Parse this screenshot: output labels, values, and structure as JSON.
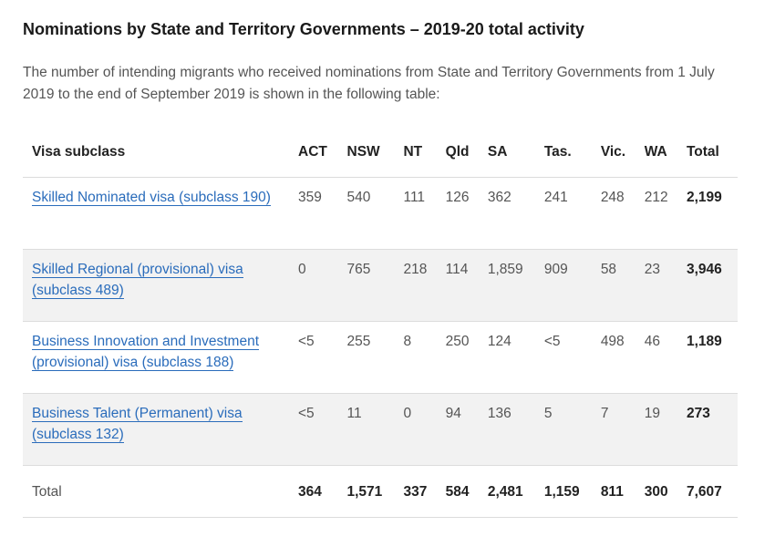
{
  "heading": "Nominations by State and Territory Governments – 2019-20 total activity",
  "intro": "The number of intending migrants who received nominations from State and Territory Governments from 1 July 2019 to the end of September 2019 is shown in the following table:",
  "table": {
    "headers": [
      "Visa subclass",
      "ACT",
      "NSW",
      "NT",
      "Qld",
      "SA",
      "Tas.",
      "Vic.",
      "WA",
      "Total"
    ],
    "rows": [
      {
        "visa": "Skilled Nominated visa (subclass 190)",
        "act": "359",
        "nsw": "540",
        "nt": "111",
        "qld": "126",
        "sa": "362",
        "tas": "241",
        "vic": "248",
        "wa": "212",
        "total": "2,199"
      },
      {
        "visa": "Skilled Regional (provisional) visa (subclass 489)",
        "act": "0",
        "nsw": "765",
        "nt": "218",
        "qld": "114",
        "sa": "1,859",
        "tas": "909",
        "vic": "58",
        "wa": "23",
        "total": "3,946"
      },
      {
        "visa": "Business Innovation and Investment (provisional) visa (subclass 188)",
        "act": "<5",
        "nsw": "255",
        "nt": "8",
        "qld": "250",
        "sa": "124",
        "tas": "<5",
        "vic": "498",
        "wa": "46",
        "total": "1,189"
      },
      {
        "visa": "Business Talent (Permanent) visa (subclass 132)",
        "act": "<5",
        "nsw": "11",
        "nt": "0",
        "qld": "94",
        "sa": "136",
        "tas": "5",
        "vic": "7",
        "wa": "19",
        "total": "273"
      }
    ],
    "total_row": {
      "label": "Total",
      "act": "364",
      "nsw": "1,571",
      "nt": "337",
      "qld": "584",
      "sa": "2,481",
      "tas": "1,159",
      "vic": "811",
      "wa": "300",
      "total": "7,607"
    }
  },
  "colors": {
    "link": "#2a6cbb",
    "row_shade": "#f2f2f2",
    "border": "#dcdcdc"
  }
}
